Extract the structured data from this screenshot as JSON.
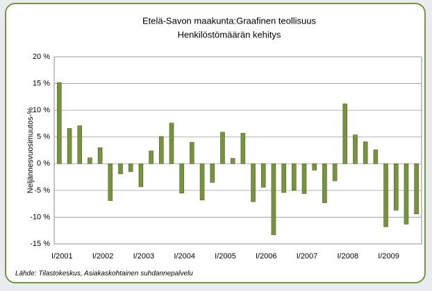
{
  "chart_data": {
    "type": "bar",
    "title": "Etelä-Savon maakunta:Graafinen teollisuus",
    "subtitle": "Henkilöstömäärän kehitys",
    "y_label": "Neljännesvuosimuutos-%",
    "source": "Lähde: Tilastokeskus, Asiakaskohtainen suhdannepalvelu",
    "categories": [
      "I/2001",
      null,
      null,
      null,
      "I/2002",
      null,
      null,
      null,
      "I/2003",
      null,
      null,
      null,
      "I/2004",
      null,
      null,
      null,
      "I/2005",
      null,
      null,
      null,
      "I/2006",
      null,
      null,
      null,
      "I/2007",
      null,
      null,
      null,
      "I/2008",
      null,
      null,
      null,
      "I/2009",
      null,
      null,
      null
    ],
    "values": [
      15.2,
      6.6,
      7.1,
      1.1,
      3.0,
      -6.9,
      -1.9,
      -1.5,
      -4.3,
      2.4,
      5.1,
      7.6,
      -5.5,
      4.0,
      -6.8,
      -3.5,
      5.9,
      1.0,
      5.7,
      -7.1,
      -4.4,
      -13.3,
      -5.4,
      -5.0,
      -5.6,
      -1.2,
      -7.3,
      -3.2,
      11.2,
      5.4,
      4.1,
      2.6,
      -11.8,
      -8.7,
      -11.3,
      -9.4
    ],
    "color": "#77933c",
    "ylim": [
      -15,
      20
    ],
    "yticks": [
      {
        "value": -15,
        "label": "-15 %"
      },
      {
        "value": -10,
        "label": "-10 %"
      },
      {
        "value": -5,
        "label": "-5 %"
      },
      {
        "value": 0,
        "label": "0 %"
      },
      {
        "value": 5,
        "label": "5 %"
      },
      {
        "value": 10,
        "label": "10 %"
      },
      {
        "value": 15,
        "label": "15 %"
      },
      {
        "value": 20,
        "label": "20 %"
      }
    ],
    "grid": true
  }
}
